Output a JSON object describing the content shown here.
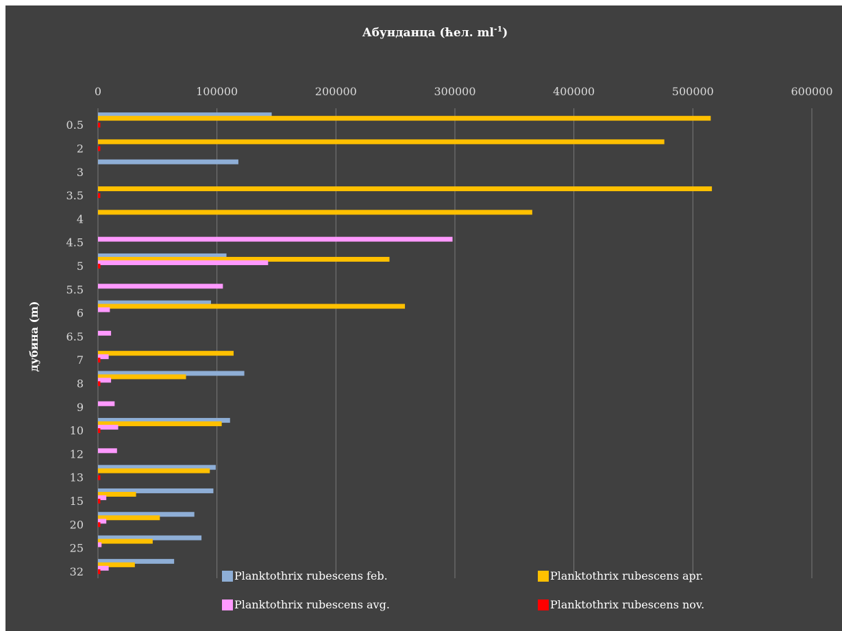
{
  "chart_data": {
    "type": "bar",
    "orientation": "horizontal",
    "title_main": "Абунданца (ћел. ml",
    "title_sup": "-1",
    "title_end": ")",
    "xlabel": "",
    "ylabel": "дубина (m)",
    "xlim": [
      0,
      600000
    ],
    "x_ticks": [
      "0",
      "100000",
      "200000",
      "300000",
      "400000",
      "500000",
      "600000"
    ],
    "x_axis_position": "top",
    "grid": "vertical",
    "legend_position": "bottom",
    "categories": [
      "0.5",
      "2",
      "3",
      "3.5",
      "4",
      "4.5",
      "5",
      "5.5",
      "6",
      "6.5",
      "7",
      "8",
      "9",
      "10",
      "12",
      "13",
      "15",
      "20",
      "25",
      "32"
    ],
    "series": [
      {
        "name": "Planktothrix rubescens   feb.",
        "color": "#8eaed6",
        "values": [
          146000,
          null,
          118000,
          null,
          null,
          null,
          108000,
          null,
          95000,
          null,
          null,
          123000,
          null,
          111000,
          null,
          99000,
          97000,
          81000,
          87000,
          64000
        ]
      },
      {
        "name": "Planktothrix rubescens   apr.",
        "color": "#ffc000",
        "values": [
          515000,
          476000,
          null,
          516000,
          365000,
          null,
          245000,
          null,
          258000,
          null,
          114000,
          74000,
          null,
          104000,
          null,
          94000,
          32000,
          52000,
          46000,
          31000
        ]
      },
      {
        "name": "Planktothrix rubescens   avg.",
        "color": "#ff99ff",
        "values": [
          null,
          null,
          null,
          null,
          null,
          298000,
          143000,
          105000,
          10000,
          11000,
          9000,
          11000,
          14000,
          17000,
          16000,
          null,
          7000,
          7000,
          3000,
          9000
        ]
      },
      {
        "name": "Planktothrix rubescens   nov.",
        "color": "#ff0000",
        "values": [
          2000,
          2000,
          null,
          2000,
          null,
          null,
          2000,
          null,
          null,
          null,
          2000,
          2000,
          null,
          2000,
          null,
          2000,
          2000,
          2000,
          null,
          2000
        ]
      }
    ]
  }
}
